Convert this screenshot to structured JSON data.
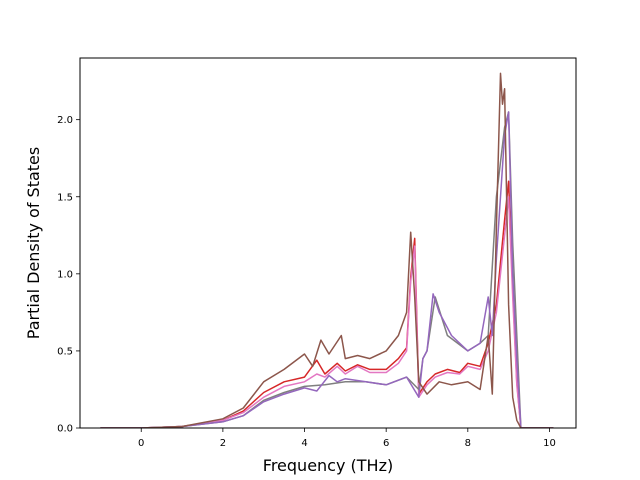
{
  "chart_data": {
    "type": "line",
    "xlabel": "Frequency (THz)",
    "ylabel": "Partial Density of States",
    "xlim": [
      -1.5,
      10.65
    ],
    "ylim": [
      0.0,
      2.4
    ],
    "xticks": [
      "0",
      "2",
      "4",
      "6",
      "8",
      "10"
    ],
    "xtick_values": [
      0,
      2,
      4,
      6,
      8,
      10
    ],
    "yticks": [
      "0.0",
      "0.5",
      "1.0",
      "1.5",
      "2.0"
    ],
    "ytick_values": [
      0.0,
      0.5,
      1.0,
      1.5,
      2.0
    ],
    "grid": false,
    "legend": "none",
    "series": [
      {
        "color": "#d62728",
        "x": [
          -1.0,
          0.0,
          1.0,
          2.0,
          2.5,
          3.0,
          3.5,
          4.0,
          4.3,
          4.5,
          4.8,
          5.0,
          5.3,
          5.6,
          6.0,
          6.3,
          6.5,
          6.6,
          6.7,
          6.8,
          7.0,
          7.2,
          7.5,
          7.8,
          8.0,
          8.3,
          8.5,
          8.7,
          8.9,
          9.0,
          9.1,
          9.2,
          9.3,
          10.1
        ],
        "y": [
          0.0,
          0.0,
          0.01,
          0.05,
          0.11,
          0.23,
          0.3,
          0.33,
          0.44,
          0.35,
          0.42,
          0.37,
          0.41,
          0.38,
          0.38,
          0.45,
          0.52,
          0.98,
          1.23,
          0.22,
          0.3,
          0.35,
          0.38,
          0.36,
          0.42,
          0.4,
          0.55,
          0.8,
          1.35,
          1.6,
          0.9,
          0.3,
          0.0,
          0.0
        ]
      },
      {
        "color": "#e377c2",
        "x": [
          -1.0,
          0.0,
          1.0,
          2.0,
          2.5,
          3.0,
          3.5,
          4.0,
          4.3,
          4.5,
          4.8,
          5.0,
          5.3,
          5.6,
          6.0,
          6.3,
          6.5,
          6.6,
          6.7,
          6.8,
          7.0,
          7.2,
          7.5,
          7.8,
          8.0,
          8.3,
          8.5,
          8.7,
          8.9,
          9.0,
          9.1,
          9.2,
          9.3,
          10.1
        ],
        "y": [
          0.0,
          0.0,
          0.01,
          0.05,
          0.1,
          0.2,
          0.27,
          0.3,
          0.35,
          0.33,
          0.4,
          0.35,
          0.4,
          0.36,
          0.36,
          0.42,
          0.5,
          0.95,
          1.18,
          0.2,
          0.28,
          0.33,
          0.36,
          0.35,
          0.4,
          0.38,
          0.5,
          0.75,
          1.25,
          1.5,
          0.85,
          0.28,
          0.0,
          0.0
        ]
      },
      {
        "color": "#7f7f7f",
        "x": [
          -1.0,
          0.0,
          1.0,
          2.0,
          2.5,
          3.0,
          3.5,
          4.0,
          4.5,
          5.0,
          5.5,
          6.0,
          6.5,
          6.8,
          6.9,
          7.0,
          7.2,
          7.5,
          8.0,
          8.3,
          8.5,
          8.7,
          8.9,
          9.0,
          9.1,
          9.2,
          9.3,
          10.1
        ],
        "y": [
          0.0,
          0.0,
          0.01,
          0.04,
          0.08,
          0.18,
          0.23,
          0.27,
          0.28,
          0.3,
          0.3,
          0.28,
          0.33,
          0.25,
          0.45,
          0.5,
          0.85,
          0.6,
          0.5,
          0.55,
          0.6,
          1.5,
          1.95,
          2.05,
          1.2,
          0.6,
          0.0,
          0.0
        ]
      },
      {
        "color": "#9467bd",
        "x": [
          -1.0,
          0.0,
          1.0,
          2.0,
          2.5,
          3.0,
          3.5,
          4.0,
          4.3,
          4.6,
          4.8,
          5.0,
          5.5,
          6.0,
          6.5,
          6.8,
          6.9,
          7.0,
          7.15,
          7.3,
          7.6,
          8.0,
          8.3,
          8.5,
          8.6,
          8.7,
          8.8,
          8.9,
          9.0,
          9.1,
          9.2,
          9.3,
          10.1
        ],
        "y": [
          0.0,
          0.0,
          0.01,
          0.04,
          0.08,
          0.17,
          0.22,
          0.26,
          0.24,
          0.34,
          0.3,
          0.32,
          0.3,
          0.28,
          0.33,
          0.2,
          0.45,
          0.5,
          0.87,
          0.75,
          0.6,
          0.5,
          0.55,
          0.85,
          0.6,
          1.1,
          1.5,
          1.9,
          2.05,
          1.0,
          0.45,
          0.0,
          0.0
        ]
      },
      {
        "color": "#8c564b",
        "x": [
          -1.0,
          0.0,
          1.0,
          2.0,
          2.5,
          3.0,
          3.5,
          4.0,
          4.2,
          4.4,
          4.6,
          4.9,
          5.0,
          5.3,
          5.6,
          6.0,
          6.3,
          6.5,
          6.6,
          6.7,
          6.8,
          7.0,
          7.3,
          7.6,
          8.0,
          8.3,
          8.5,
          8.6,
          8.7,
          8.8,
          8.85,
          8.9,
          8.95,
          9.0,
          9.1,
          9.2,
          9.3,
          10.1
        ],
        "y": [
          0.0,
          0.0,
          0.01,
          0.06,
          0.13,
          0.3,
          0.38,
          0.48,
          0.4,
          0.57,
          0.48,
          0.6,
          0.45,
          0.47,
          0.45,
          0.5,
          0.6,
          0.75,
          1.27,
          0.85,
          0.3,
          0.22,
          0.3,
          0.28,
          0.3,
          0.25,
          0.6,
          0.22,
          1.3,
          2.3,
          2.1,
          2.2,
          1.5,
          0.8,
          0.2,
          0.05,
          0.0,
          0.0
        ]
      }
    ]
  }
}
